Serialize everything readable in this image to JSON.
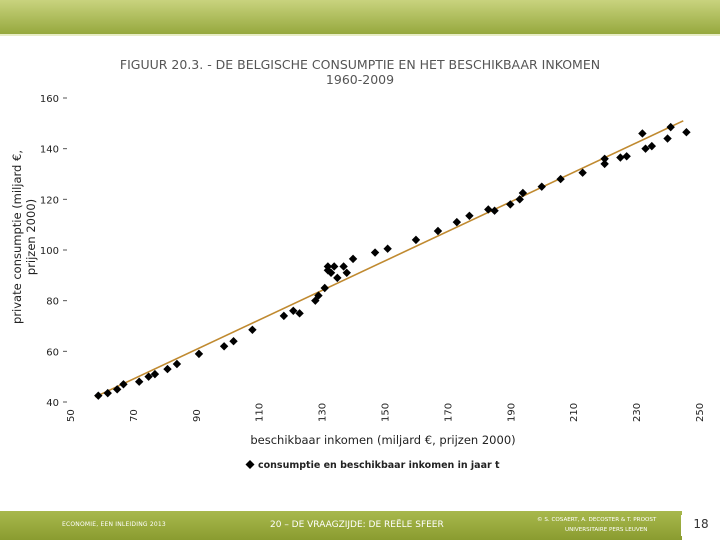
{
  "footer": {
    "left_text": "ECONOMIE, EEN INLEIDING 2013",
    "middle_text": "20 – DE VRAAGZIJDE: DE REËLE SFEER",
    "right_line1": "© S. COSAERT, A. DECOSTER & T. PROOST",
    "right_line2": "UNIVERSITAIRE PERS LEUVEN",
    "page_number": "18"
  },
  "colors": {
    "header_green_light": "#b9c86a",
    "header_green_dark": "#8ea234",
    "footer_green": "#9aab3c",
    "title_color": "#555555",
    "trendline": "#c08a30",
    "marker": "#000000"
  },
  "chart_data": {
    "type": "scatter",
    "title": "FIGUUR 20.3. - DE BELGISCHE CONSUMPTIE EN HET BESCHIKBAAR INKOMEN",
    "subtitle": "1960-2009",
    "xlabel": "beschikbaar inkomen (miljard €, prijzen 2000)",
    "ylabel_line1": "private consumptie (miljard €,",
    "ylabel_line2": "prijzen 2000)",
    "legend": "consumptie en beschikbaar inkomen in jaar t",
    "legend_position": "bottom",
    "xlim": [
      50,
      250
    ],
    "ylim": [
      40,
      160
    ],
    "x_ticks": [
      "50",
      "70",
      "90",
      "110",
      "130",
      "150",
      "170",
      "190",
      "210",
      "230",
      "250"
    ],
    "y_ticks": [
      "40",
      "60",
      "80",
      "100",
      "120",
      "140",
      "160"
    ],
    "trendline": {
      "x": [
        58,
        245
      ],
      "y": [
        42,
        151
      ]
    },
    "points": [
      {
        "x": 59,
        "y": 42.5
      },
      {
        "x": 62,
        "y": 43.5
      },
      {
        "x": 65,
        "y": 45
      },
      {
        "x": 67,
        "y": 47
      },
      {
        "x": 72,
        "y": 48
      },
      {
        "x": 75,
        "y": 50
      },
      {
        "x": 77,
        "y": 51
      },
      {
        "x": 81,
        "y": 53
      },
      {
        "x": 84,
        "y": 55
      },
      {
        "x": 91,
        "y": 59
      },
      {
        "x": 99,
        "y": 62
      },
      {
        "x": 102,
        "y": 64
      },
      {
        "x": 108,
        "y": 68.5
      },
      {
        "x": 118,
        "y": 74
      },
      {
        "x": 121,
        "y": 76
      },
      {
        "x": 123,
        "y": 75
      },
      {
        "x": 128,
        "y": 80
      },
      {
        "x": 129,
        "y": 82
      },
      {
        "x": 131,
        "y": 85
      },
      {
        "x": 132,
        "y": 92
      },
      {
        "x": 132,
        "y": 93.5
      },
      {
        "x": 133,
        "y": 91
      },
      {
        "x": 134,
        "y": 93.5
      },
      {
        "x": 135,
        "y": 89
      },
      {
        "x": 137,
        "y": 93.5
      },
      {
        "x": 138,
        "y": 91
      },
      {
        "x": 140,
        "y": 96.5
      },
      {
        "x": 147,
        "y": 99
      },
      {
        "x": 151,
        "y": 100.5
      },
      {
        "x": 160,
        "y": 104
      },
      {
        "x": 167,
        "y": 107.5
      },
      {
        "x": 173,
        "y": 111
      },
      {
        "x": 177,
        "y": 113.5
      },
      {
        "x": 183,
        "y": 116
      },
      {
        "x": 185,
        "y": 115.5
      },
      {
        "x": 190,
        "y": 118
      },
      {
        "x": 193,
        "y": 120
      },
      {
        "x": 194,
        "y": 122.5
      },
      {
        "x": 200,
        "y": 125
      },
      {
        "x": 206,
        "y": 128
      },
      {
        "x": 213,
        "y": 130.5
      },
      {
        "x": 220,
        "y": 134
      },
      {
        "x": 220,
        "y": 136
      },
      {
        "x": 225,
        "y": 136.5
      },
      {
        "x": 227,
        "y": 137
      },
      {
        "x": 232,
        "y": 146
      },
      {
        "x": 233,
        "y": 140
      },
      {
        "x": 235,
        "y": 141
      },
      {
        "x": 240,
        "y": 144
      },
      {
        "x": 241,
        "y": 148.5
      },
      {
        "x": 246,
        "y": 146.5
      }
    ]
  }
}
